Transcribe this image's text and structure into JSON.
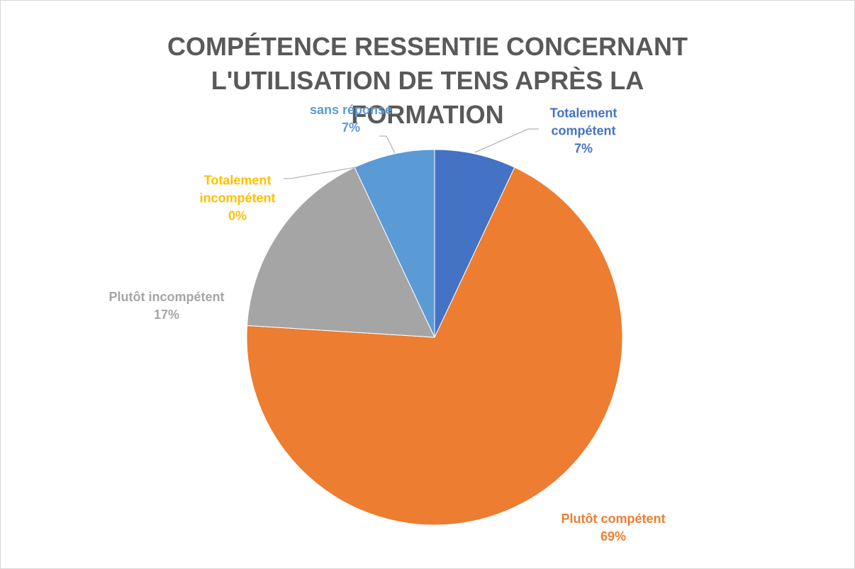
{
  "chart_data": {
    "type": "pie",
    "title": "COMPÉTENCE RESSENTIE CONCERNANT L'UTILISATION DE TENS APRÈS LA FORMATION",
    "categories": [
      "Totalement compétent",
      "Plutôt compétent",
      "Totalement incompétent",
      "Plutôt incompétent",
      "sans réponse"
    ],
    "values": [
      7,
      69,
      0,
      17,
      7
    ],
    "value_labels": [
      "7%",
      "69%",
      "0%",
      "17%",
      "7%"
    ],
    "colors": [
      "#4472c4",
      "#ed7d31",
      "#ffc000",
      "#a5a5a5",
      "#5b9bd5"
    ]
  }
}
